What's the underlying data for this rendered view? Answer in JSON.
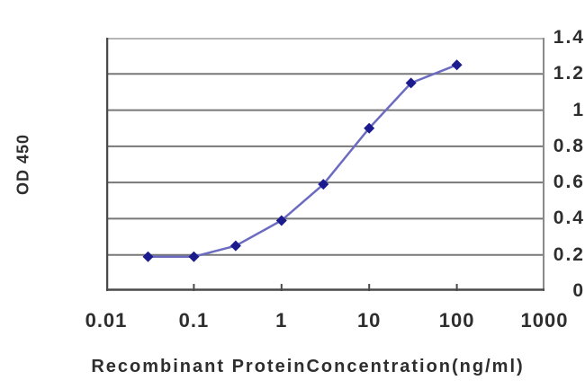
{
  "chart_data": {
    "type": "line",
    "title": "",
    "xlabel": "Recombinant ProteinConcentration(ng/ml)",
    "ylabel": "OD 450",
    "x_scale": "log",
    "xlim": [
      0.01,
      1000
    ],
    "x_tick_values": [
      0.01,
      0.1,
      1,
      10,
      100,
      1000
    ],
    "x_tick_labels": [
      "0.01",
      "0.1",
      "1",
      "10",
      "100",
      "1000"
    ],
    "ylim": [
      0,
      1.4
    ],
    "y_tick_values": [
      0,
      0.2,
      0.4,
      0.6,
      0.8,
      1,
      1.2,
      1.4
    ],
    "y_tick_labels": [
      "0",
      "0.2",
      "0.4",
      "0.6",
      "0.8",
      "1",
      "1.2",
      "1.4"
    ],
    "grid": "horizontal",
    "legend": "none",
    "colors": {
      "line": "#6b6bc2",
      "marker": "#1b1b8e",
      "gridline": "#787878",
      "axis": "#4a4a4a",
      "top_border": "#b5b5b5",
      "right_border": "#8a8a8a",
      "text": "#2e2e2e",
      "background": "#ffffff"
    },
    "series": [
      {
        "name": "OD 450",
        "marker": "diamond",
        "x": [
          0.03,
          0.1,
          0.3,
          1,
          3,
          10,
          30,
          100
        ],
        "y": [
          0.19,
          0.19,
          0.25,
          0.39,
          0.59,
          0.9,
          1.15,
          1.25
        ]
      }
    ]
  }
}
